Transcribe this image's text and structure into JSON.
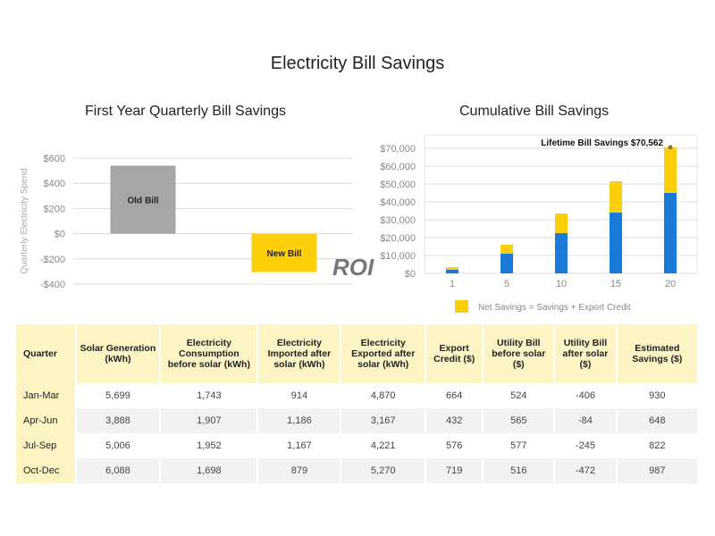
{
  "page_title": "Electricity Bill Savings",
  "colors": {
    "old_bill": "#a6a6a6",
    "new_bill": "#fdcf0a",
    "savings_blue": "#1a7ad8",
    "export_yellow": "#fdcf0a",
    "table_header": "#fdf4c4"
  },
  "watermark": "ROI",
  "chart_data": [
    {
      "type": "bar",
      "title": "First Year Quarterly Bill Savings",
      "ylabel": "Quarterly Electricity Spend",
      "xlabel": "",
      "categories": [
        "Old Bill",
        "New Bill"
      ],
      "values": [
        540,
        -305
      ],
      "ylim": [
        -400,
        600
      ],
      "yticks": [
        600,
        400,
        200,
        0,
        -200,
        -400
      ],
      "ytick_labels": [
        "$600",
        "$400",
        "$200",
        "$0",
        "-$200",
        "-$400"
      ],
      "grid": true
    },
    {
      "type": "bar",
      "stacked": true,
      "title": "Cumulative Bill Savings",
      "annotation": "Lifetime Bill Savings $70,562",
      "categories": [
        "1",
        "5",
        "10",
        "15",
        "20"
      ],
      "series": [
        {
          "name": "Savings",
          "values": [
            2000,
            11000,
            22500,
            34000,
            45000
          ]
        },
        {
          "name": "Export Credit",
          "values": [
            1500,
            5000,
            11000,
            17500,
            25562
          ]
        }
      ],
      "legend": [
        "Net Savings = Savings + Export Credit"
      ],
      "legend_position": "bottom",
      "ylim": [
        0,
        70000
      ],
      "yticks": [
        0,
        10000,
        20000,
        30000,
        40000,
        50000,
        60000,
        70000
      ],
      "ytick_labels": [
        "$0",
        "$10,000",
        "$20,000",
        "$30,000",
        "$40,000",
        "$50,000",
        "$60,000",
        "$70,000"
      ],
      "grid": true
    }
  ],
  "table": {
    "headers": [
      "Quarter",
      "Solar Generation (kWh)",
      "Electricity Consumption before solar (kWh)",
      "Electricity Imported after solar (kWh)",
      "Electricity Exported after solar (kWh)",
      "Export Credit ($)",
      "Utility Bill before solar ($)",
      "Utility Bill after solar ($)",
      "Estimated Savings ($)"
    ],
    "rows": [
      [
        "Jan-Mar",
        "5,699",
        "1,743",
        "914",
        "4,870",
        "664",
        "524",
        "-406",
        "930"
      ],
      [
        "Apr-Jun",
        "3,888",
        "1,907",
        "1,186",
        "3,167",
        "432",
        "565",
        "-84",
        "648"
      ],
      [
        "Jul-Sep",
        "5,006",
        "1,952",
        "1,167",
        "4,221",
        "576",
        "577",
        "-245",
        "822"
      ],
      [
        "Oct-Dec",
        "6,088",
        "1,698",
        "879",
        "5,270",
        "719",
        "516",
        "-472",
        "987"
      ]
    ]
  }
}
